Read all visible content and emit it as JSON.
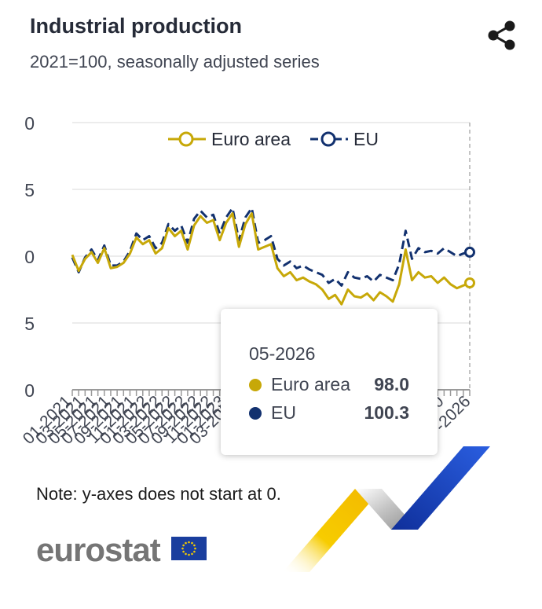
{
  "header": {
    "title": "Industrial production",
    "subtitle": "2021=100, seasonally adjusted series"
  },
  "icons": {
    "share": "share-icon"
  },
  "colors": {
    "euro_area": "#c7a808",
    "eu": "#12316f",
    "grid": "#e6e6e6",
    "axis": "#9a9a9a"
  },
  "chart_data": {
    "type": "line",
    "legend": {
      "placement": "top",
      "entries": [
        "Euro area",
        "EU"
      ]
    },
    "y_tick_labels": [
      "0",
      "5",
      "0",
      "5",
      "0"
    ],
    "x_tick_labels_left": [
      "01-2021",
      "03-2021",
      "05-2021",
      "07-2021",
      "09-2021",
      "11-2021",
      "01-2022",
      "03-2022",
      "05-2022",
      "07-2022",
      "09-2022",
      "11-2022",
      "01-2023",
      "03-2023"
    ],
    "x_tick_labels_right": [
      "0",
      "0",
      "0",
      "0",
      "0",
      "0",
      "0",
      "0",
      "0",
      "0",
      "0",
      "0",
      "0",
      "0",
      "0",
      "0",
      "0",
      "0",
      "0"
    ],
    "x_tick_labels_end": [
      "0",
      "-2026"
    ],
    "grid": true,
    "series": [
      {
        "name": "Euro area",
        "values": [
          100.1,
          98.9,
          99.8,
          100.3,
          99.5,
          100.6,
          99.1,
          99.2,
          99.5,
          100.2,
          101.4,
          100.9,
          101.2,
          100.2,
          100.6,
          102.1,
          101.5,
          101.9,
          100.5,
          102.3,
          103.0,
          102.5,
          102.7,
          101.2,
          102.5,
          103.2,
          100.7,
          102.4,
          103.2,
          100.5,
          100.7,
          100.9,
          99.1,
          98.5,
          98.8,
          98.2,
          98.4,
          98.1,
          97.9,
          97.5,
          96.8,
          97.1,
          96.4,
          97.5,
          97.0,
          96.9,
          97.2,
          96.7,
          97.3,
          97.0,
          96.6,
          97.9,
          100.5,
          98.2,
          98.8,
          98.4,
          98.5,
          98.0,
          98.4,
          97.9,
          97.6,
          97.8,
          98.0
        ]
      },
      {
        "name": "EU",
        "values": [
          99.9,
          98.8,
          99.9,
          100.5,
          99.7,
          100.8,
          99.3,
          99.3,
          99.6,
          100.4,
          101.7,
          101.2,
          101.5,
          100.6,
          101.0,
          102.4,
          101.9,
          102.3,
          101.0,
          102.8,
          103.4,
          102.9,
          103.1,
          101.7,
          102.9,
          103.6,
          101.2,
          102.9,
          103.6,
          101.0,
          101.2,
          101.5,
          99.8,
          99.3,
          99.6,
          99.1,
          99.3,
          99.0,
          98.8,
          98.6,
          98.0,
          98.3,
          97.8,
          98.8,
          98.4,
          98.3,
          98.5,
          98.1,
          98.6,
          98.4,
          98.2,
          99.4,
          101.9,
          99.8,
          100.6,
          100.3,
          100.4,
          100.2,
          100.6,
          100.3,
          100.0,
          100.2,
          100.3
        ]
      }
    ]
  },
  "tooltip": {
    "date": "05-2026",
    "rows": [
      {
        "name": "Euro area",
        "value": "98.0"
      },
      {
        "name": "EU",
        "value": "100.3"
      }
    ]
  },
  "footer": {
    "note": "Note: y-axes does not start at 0.",
    "logo": "eurostat"
  }
}
